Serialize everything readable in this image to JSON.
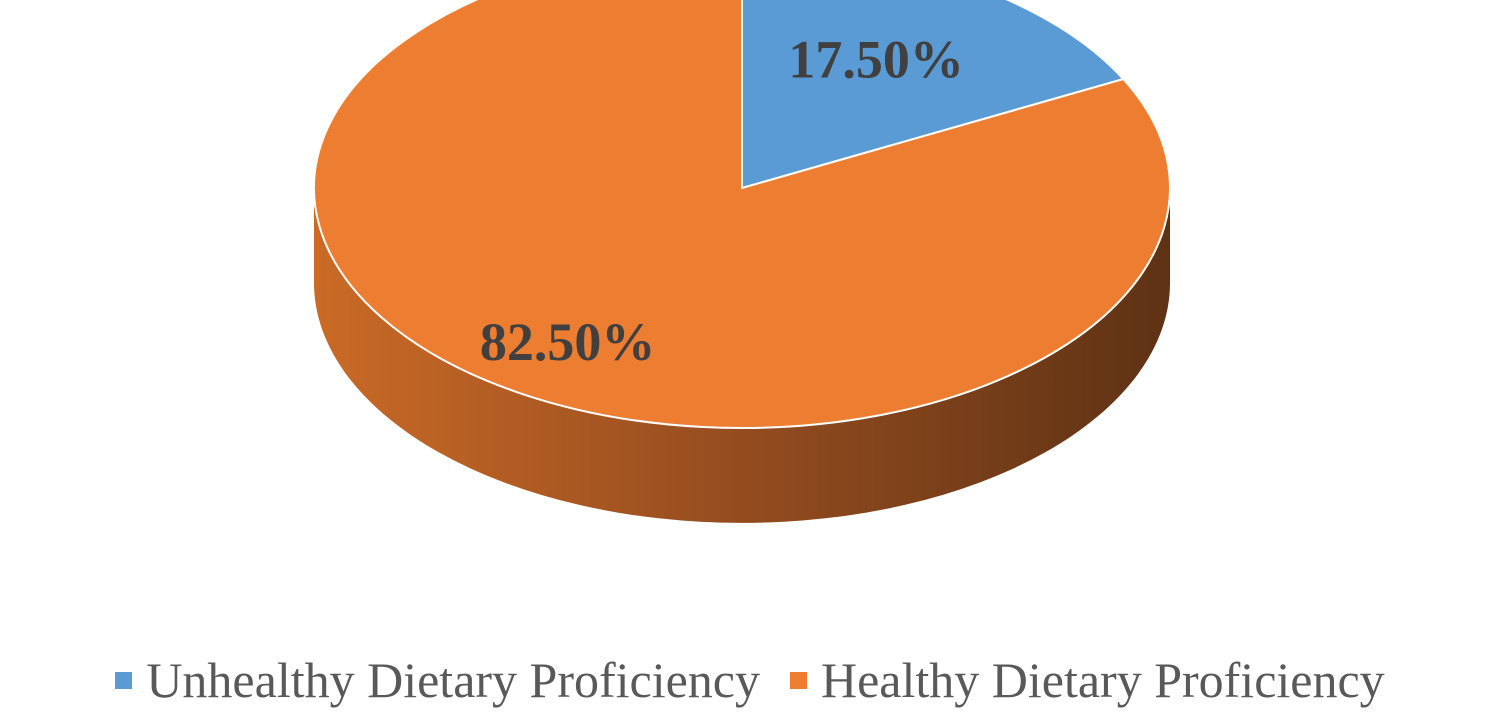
{
  "chart_data": {
    "type": "pie",
    "three_d": true,
    "title": "",
    "categories": [
      "Unhealthy Dietary Proficiency",
      "Healthy Dietary Proficiency"
    ],
    "values": [
      17.5,
      82.5
    ],
    "data_labels": [
      "17.50%",
      "82.50%"
    ],
    "colors": [
      "#5b9bd5",
      "#ed7d31"
    ],
    "legend_position": "bottom"
  }
}
